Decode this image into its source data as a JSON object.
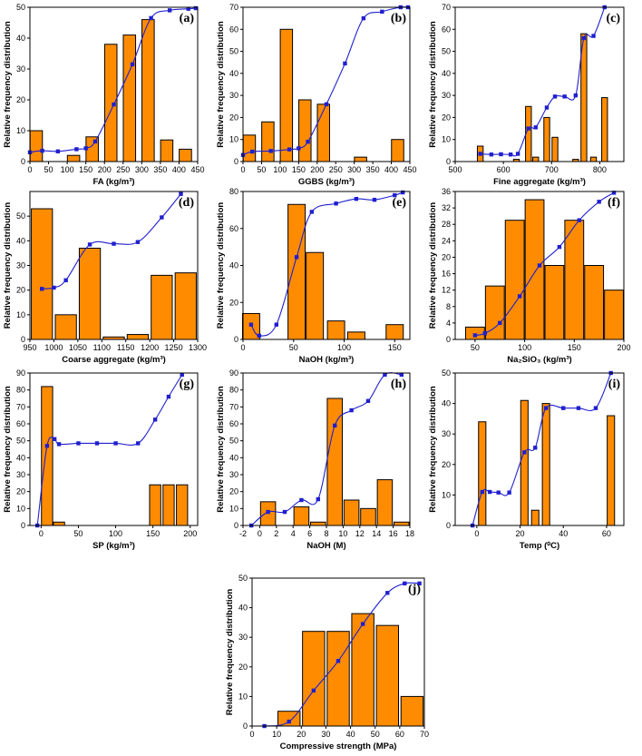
{
  "chart_data": [
    {
      "id": "a",
      "type": "bar",
      "label": "(a)",
      "xlabel": "FA (kg/m³)",
      "ylabel": "Relative frequency distribution",
      "xlim": [
        0,
        450
      ],
      "ylim": [
        0,
        50
      ],
      "xticks": [
        0,
        50,
        100,
        150,
        200,
        250,
        300,
        350,
        400,
        450
      ],
      "yticks": [
        0,
        10,
        20,
        30,
        40,
        50
      ],
      "bar_width": 33,
      "bars": [
        {
          "x": 17,
          "y": 10
        },
        {
          "x": 117,
          "y": 2
        },
        {
          "x": 167,
          "y": 8
        },
        {
          "x": 217,
          "y": 38
        },
        {
          "x": 267,
          "y": 41
        },
        {
          "x": 317,
          "y": 46
        },
        {
          "x": 367,
          "y": 7
        },
        {
          "x": 417,
          "y": 4
        }
      ],
      "curve": [
        [
          0,
          3
        ],
        [
          33,
          3.5
        ],
        [
          75,
          3.3
        ],
        [
          125,
          4
        ],
        [
          150,
          4.3
        ],
        [
          175,
          6.5
        ],
        [
          225,
          18.5
        ],
        [
          275,
          31.5
        ],
        [
          325,
          46.5
        ],
        [
          375,
          49
        ],
        [
          425,
          49.5
        ],
        [
          445,
          49.7
        ]
      ]
    },
    {
      "id": "b",
      "type": "bar",
      "label": "(b)",
      "xlabel": "GGBS (kg/m³)",
      "ylabel": "Relative frequency distribution",
      "xlim": [
        0,
        450
      ],
      "ylim": [
        0,
        70
      ],
      "xticks": [
        0,
        50,
        100,
        150,
        200,
        250,
        300,
        350,
        400,
        450
      ],
      "yticks": [
        0,
        10,
        20,
        30,
        40,
        50,
        60,
        70
      ],
      "bar_width": 33,
      "bars": [
        {
          "x": 17,
          "y": 12
        },
        {
          "x": 67,
          "y": 18
        },
        {
          "x": 117,
          "y": 60
        },
        {
          "x": 167,
          "y": 28
        },
        {
          "x": 217,
          "y": 26
        },
        {
          "x": 317,
          "y": 2
        },
        {
          "x": 417,
          "y": 10
        }
      ],
      "curve": [
        [
          0,
          3
        ],
        [
          25,
          4.5
        ],
        [
          75,
          4.8
        ],
        [
          125,
          5.5
        ],
        [
          150,
          6
        ],
        [
          175,
          9
        ],
        [
          225,
          26
        ],
        [
          275,
          44.5
        ],
        [
          325,
          65
        ],
        [
          375,
          68
        ],
        [
          425,
          70
        ],
        [
          445,
          70
        ]
      ]
    },
    {
      "id": "c",
      "type": "bar",
      "label": "(c)",
      "xlabel": "Fine aggregate (kg/m³)",
      "ylabel": "Relative frequency distribution",
      "xlim": [
        500,
        850
      ],
      "ylim": [
        0,
        70
      ],
      "xticks": [
        500,
        600,
        700,
        800
      ],
      "yticks": [
        0,
        10,
        20,
        30,
        40,
        50,
        60,
        70
      ],
      "bar_width": 12,
      "bars": [
        {
          "x": 552,
          "y": 7
        },
        {
          "x": 627,
          "y": 1
        },
        {
          "x": 652,
          "y": 25
        },
        {
          "x": 667,
          "y": 2
        },
        {
          "x": 690,
          "y": 20
        },
        {
          "x": 707,
          "y": 11
        },
        {
          "x": 750,
          "y": 1
        },
        {
          "x": 767,
          "y": 58
        },
        {
          "x": 787,
          "y": 2
        },
        {
          "x": 810,
          "y": 29
        }
      ],
      "curve": [
        [
          552,
          3.5
        ],
        [
          575,
          3.2
        ],
        [
          595,
          3.3
        ],
        [
          615,
          3.2
        ],
        [
          630,
          3.5
        ],
        [
          652,
          15
        ],
        [
          667,
          15.5
        ],
        [
          690,
          24.5
        ],
        [
          707,
          29.5
        ],
        [
          727,
          29.5
        ],
        [
          750,
          30
        ],
        [
          767,
          56
        ],
        [
          787,
          57
        ],
        [
          810,
          70
        ]
      ]
    },
    {
      "id": "d",
      "type": "bar",
      "label": "(d)",
      "xlabel": "Coarse aggregate (kg/m³)",
      "ylabel": "Relative frequency distribution",
      "xlim": [
        950,
        1300
      ],
      "ylim": [
        0,
        60
      ],
      "xticks": [
        950,
        1000,
        1050,
        1100,
        1150,
        1200,
        1250,
        1300
      ],
      "yticks": [
        0,
        10,
        20,
        30,
        40,
        50
      ],
      "bar_width": 44,
      "bars": [
        {
          "x": 975,
          "y": 53
        },
        {
          "x": 1025,
          "y": 10
        },
        {
          "x": 1075,
          "y": 37
        },
        {
          "x": 1125,
          "y": 1
        },
        {
          "x": 1175,
          "y": 2
        },
        {
          "x": 1225,
          "y": 26
        },
        {
          "x": 1275,
          "y": 27
        }
      ],
      "curve": [
        [
          975,
          20.5
        ],
        [
          1000,
          21
        ],
        [
          1025,
          24
        ],
        [
          1075,
          38.5
        ],
        [
          1125,
          38.8
        ],
        [
          1175,
          39.5
        ],
        [
          1225,
          49.5
        ],
        [
          1265,
          59
        ]
      ]
    },
    {
      "id": "e",
      "type": "bar",
      "label": "(e)",
      "xlabel": "NaOH (kg/m³)",
      "ylabel": "Relative frequency distribution",
      "xlim": [
        0,
        165
      ],
      "ylim": [
        0,
        80
      ],
      "xticks": [
        0,
        50,
        100,
        150
      ],
      "yticks": [
        0,
        20,
        40,
        60,
        80
      ],
      "bar_width": 17,
      "bars": [
        {
          "x": 8,
          "y": 14
        },
        {
          "x": 53,
          "y": 73
        },
        {
          "x": 71,
          "y": 47
        },
        {
          "x": 92,
          "y": 10
        },
        {
          "x": 112,
          "y": 4
        },
        {
          "x": 150,
          "y": 8
        }
      ],
      "curve": [
        [
          8,
          8
        ],
        [
          16,
          2
        ],
        [
          33,
          8
        ],
        [
          53,
          44.5
        ],
        [
          68,
          69
        ],
        [
          92,
          73.5
        ],
        [
          112,
          76
        ],
        [
          130,
          75.5
        ],
        [
          150,
          78
        ],
        [
          158,
          79.5
        ]
      ]
    },
    {
      "id": "f",
      "type": "bar",
      "label": "(f)",
      "xlabel": "Na₂SiO₃ (kg/m³)",
      "ylabel": "Relative frequency distribution",
      "xlim": [
        30,
        200
      ],
      "ylim": [
        0,
        36
      ],
      "xticks": [
        50,
        100,
        150,
        200
      ],
      "yticks": [
        0,
        4,
        8,
        12,
        16,
        20,
        24,
        28,
        32,
        36
      ],
      "bar_width": 19,
      "bars": [
        {
          "x": 50,
          "y": 3
        },
        {
          "x": 70,
          "y": 13
        },
        {
          "x": 90,
          "y": 29
        },
        {
          "x": 110,
          "y": 34
        },
        {
          "x": 130,
          "y": 18
        },
        {
          "x": 150,
          "y": 29
        },
        {
          "x": 170,
          "y": 18
        },
        {
          "x": 190,
          "y": 12
        }
      ],
      "curve": [
        [
          50,
          1
        ],
        [
          60,
          1.5
        ],
        [
          75,
          4
        ],
        [
          95,
          10.5
        ],
        [
          115,
          18
        ],
        [
          135,
          22.5
        ],
        [
          155,
          29
        ],
        [
          175,
          33.5
        ],
        [
          190,
          35.7
        ]
      ]
    },
    {
      "id": "g",
      "type": "bar",
      "label": "(g)",
      "xlabel": "SP (kg/m³)",
      "ylabel": "Relative frequency distribution",
      "xlim": [
        -15,
        210
      ],
      "ylim": [
        0,
        90
      ],
      "xticks": [
        0,
        50,
        100,
        150,
        200
      ],
      "yticks": [
        0,
        10,
        20,
        30,
        40,
        50,
        60,
        70,
        80,
        90
      ],
      "bar_width": 15,
      "bars": [
        {
          "x": 8,
          "y": 82
        },
        {
          "x": 24,
          "y": 2
        },
        {
          "x": 153,
          "y": 24
        },
        {
          "x": 171,
          "y": 24
        },
        {
          "x": 189,
          "y": 24
        }
      ],
      "curve": [
        [
          -5,
          0
        ],
        [
          8,
          47
        ],
        [
          18,
          51
        ],
        [
          24,
          48
        ],
        [
          50,
          48.5
        ],
        [
          75,
          48.5
        ],
        [
          100,
          48.5
        ],
        [
          130,
          48.5
        ],
        [
          153,
          62.5
        ],
        [
          171,
          76
        ],
        [
          189,
          89
        ]
      ]
    },
    {
      "id": "h",
      "type": "bar",
      "label": "(h)",
      "xlabel": "NaOH (M)",
      "ylabel": "Relative frequency distribution",
      "xlim": [
        -2,
        18
      ],
      "ylim": [
        0,
        90
      ],
      "xticks": [
        -2,
        0,
        2,
        4,
        6,
        8,
        10,
        12,
        14,
        16,
        18
      ],
      "yticks": [
        0,
        10,
        20,
        30,
        40,
        50,
        60,
        70,
        80,
        90
      ],
      "bar_width": 1.8,
      "bars": [
        {
          "x": 1,
          "y": 14
        },
        {
          "x": 5,
          "y": 11
        },
        {
          "x": 7,
          "y": 2
        },
        {
          "x": 9,
          "y": 75
        },
        {
          "x": 11,
          "y": 15
        },
        {
          "x": 13,
          "y": 10
        },
        {
          "x": 15,
          "y": 27
        },
        {
          "x": 17,
          "y": 2
        }
      ],
      "curve": [
        [
          -1,
          0
        ],
        [
          1,
          8
        ],
        [
          3,
          8
        ],
        [
          5,
          15
        ],
        [
          7,
          15.5
        ],
        [
          9,
          59
        ],
        [
          11,
          68
        ],
        [
          13,
          73.5
        ],
        [
          15,
          89
        ],
        [
          17,
          89
        ]
      ]
    },
    {
      "id": "i",
      "type": "bar",
      "label": "(i)",
      "xlabel": "Temp (⁰C)",
      "ylabel": "Relative frequency distribution",
      "xlim": [
        -10,
        68
      ],
      "ylim": [
        0,
        50
      ],
      "xticks": [
        0,
        20,
        40,
        60
      ],
      "yticks": [
        0,
        10,
        20,
        30,
        40,
        50
      ],
      "bar_width": 3.4,
      "bars": [
        {
          "x": 2.5,
          "y": 34
        },
        {
          "x": 22,
          "y": 41
        },
        {
          "x": 27,
          "y": 5
        },
        {
          "x": 32,
          "y": 40
        },
        {
          "x": 62,
          "y": 36
        }
      ],
      "curve": [
        [
          -2,
          0
        ],
        [
          2.5,
          11
        ],
        [
          6,
          11
        ],
        [
          10,
          10.8
        ],
        [
          15,
          10.8
        ],
        [
          22,
          24
        ],
        [
          27,
          25.5
        ],
        [
          32,
          38.5
        ],
        [
          40,
          38.5
        ],
        [
          47,
          38.5
        ],
        [
          55,
          38.5
        ],
        [
          62,
          50
        ]
      ]
    },
    {
      "id": "j",
      "type": "bar",
      "label": "(j)",
      "xlabel": "Compressive strength (MPa)",
      "ylabel": "Relative frequency distribution",
      "xlim": [
        0,
        70
      ],
      "ylim": [
        0,
        50
      ],
      "xticks": [
        0,
        10,
        20,
        30,
        40,
        50,
        60,
        70
      ],
      "yticks": [
        0,
        10,
        20,
        30,
        40,
        50
      ],
      "bar_width": 9,
      "bars": [
        {
          "x": 15,
          "y": 5
        },
        {
          "x": 25,
          "y": 32
        },
        {
          "x": 35,
          "y": 32
        },
        {
          "x": 45,
          "y": 38
        },
        {
          "x": 55,
          "y": 34
        },
        {
          "x": 65,
          "y": 10
        }
      ],
      "curve": [
        [
          5,
          0
        ],
        [
          15,
          1.5
        ],
        [
          25,
          12
        ],
        [
          35,
          22
        ],
        [
          45,
          34.5
        ],
        [
          55,
          45
        ],
        [
          62,
          48.2
        ],
        [
          68,
          48.2
        ]
      ]
    }
  ]
}
